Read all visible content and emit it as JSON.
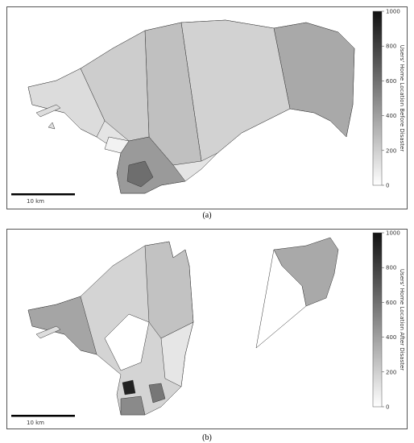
{
  "panels": [
    {
      "caption": "(a)",
      "scale_bar": "10 km",
      "colorbar": {
        "label": "Users' Home Location Before Disaster",
        "lim": [
          0,
          1000
        ],
        "ticks": [
          0,
          200,
          400,
          600,
          800,
          1000
        ]
      }
    },
    {
      "caption": "(b)",
      "scale_bar": "10 km",
      "colorbar": {
        "label": "Users' Home Location After Disaster",
        "lim": [
          0,
          1000
        ],
        "ticks": [
          0,
          200,
          400,
          600,
          800,
          1000
        ]
      }
    }
  ]
}
